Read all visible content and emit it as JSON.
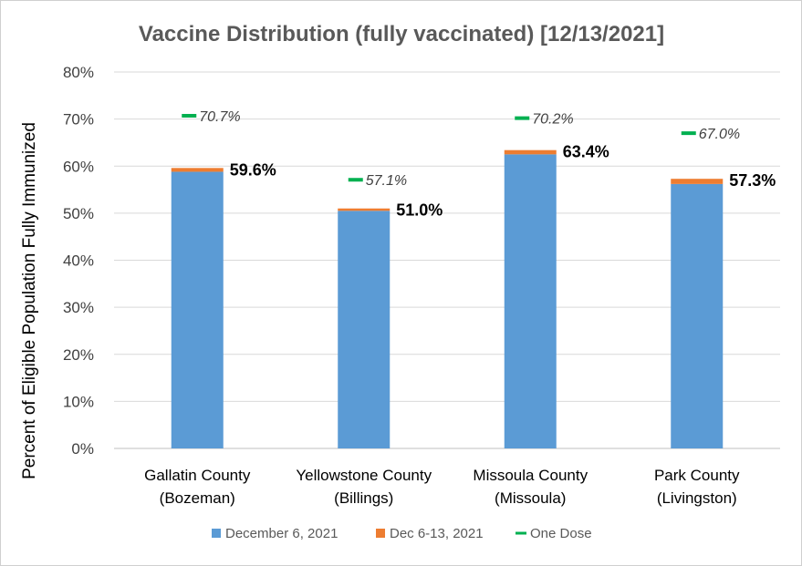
{
  "chart_data": {
    "type": "bar",
    "title": "Vaccine Distribution (fully vaccinated) [12/13/2021]",
    "ylabel": "Percent of Eligible Population Fully Immunized",
    "ylim": [
      0,
      80
    ],
    "yticks": [
      "0%",
      "10%",
      "20%",
      "30%",
      "40%",
      "50%",
      "60%",
      "70%",
      "80%"
    ],
    "categories": [
      [
        "Gallatin County",
        "(Bozeman)"
      ],
      [
        "Yellowstone County",
        "(Billings)"
      ],
      [
        "Missoula County",
        "(Missoula)"
      ],
      [
        "Park County",
        "(Livingston)"
      ]
    ],
    "series": [
      {
        "name": "December 6, 2021",
        "color": "#5B9BD5",
        "values": [
          58.8,
          50.5,
          62.5,
          56.2
        ]
      },
      {
        "name": "Dec 6-13, 2021",
        "color": "#ED7D31",
        "values": [
          0.8,
          0.5,
          0.9,
          1.1
        ]
      }
    ],
    "totals": [
      59.6,
      51.0,
      63.4,
      57.3
    ],
    "total_labels": [
      "59.6%",
      "51.0%",
      "63.4%",
      "57.3%"
    ],
    "one_dose": {
      "name": "One Dose",
      "color": "#00B050",
      "values": [
        70.7,
        57.1,
        70.2,
        67.0
      ],
      "labels": [
        "70.7%",
        "57.1%",
        "70.2%",
        "67.0%"
      ]
    },
    "grid": true,
    "legend_position": "bottom"
  }
}
